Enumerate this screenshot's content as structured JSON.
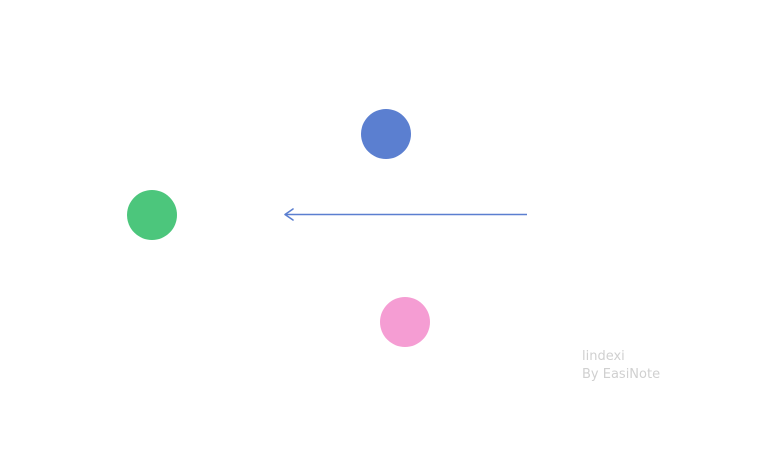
{
  "shapes": {
    "blue_circle": {
      "color": "#5b7fd0"
    },
    "green_circle": {
      "color": "#4cc67c"
    },
    "pink_circle": {
      "color": "#f59dd3"
    },
    "arrow": {
      "color": "#5b7fd0",
      "direction": "left"
    }
  },
  "watermark": {
    "author": "lindexi",
    "credit": "By EasiNote",
    "color": "#d0d0d0"
  }
}
